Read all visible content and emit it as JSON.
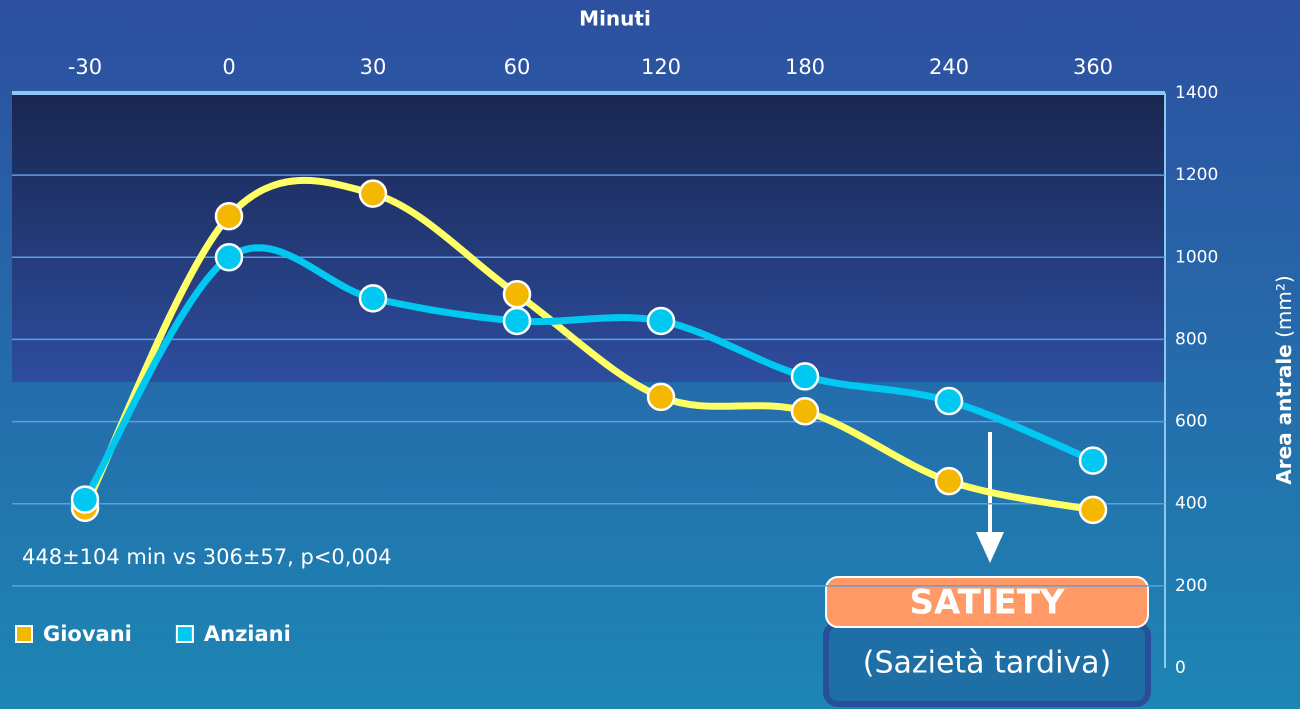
{
  "chart_data": {
    "type": "line",
    "x_label": "Minuti",
    "y_label": "Area antrale",
    "y_label_unit": "(mm²)",
    "categories": [
      "-30",
      "0",
      "30",
      "60",
      "120",
      "180",
      "240",
      "360"
    ],
    "series": [
      {
        "name": "Giovani",
        "color": "#ffff66",
        "marker_color": "#f5b800",
        "values": [
          390,
          1100,
          1155,
          910,
          660,
          625,
          455,
          385
        ]
      },
      {
        "name": "Anziani",
        "color": "#00c8f0",
        "marker_color": "#00c8f0",
        "values": [
          410,
          1000,
          900,
          845,
          845,
          710,
          650,
          505
        ]
      }
    ],
    "ylim": [
      0,
      1400
    ],
    "yticks": [
      0,
      200,
      400,
      600,
      800,
      1000,
      1200,
      1400
    ],
    "grid": true,
    "annotation": "448±104 min vs 306±57, p<0,004",
    "callout": {
      "title": "SATIETY",
      "subtitle": "(Sazietà tardiva)"
    }
  }
}
